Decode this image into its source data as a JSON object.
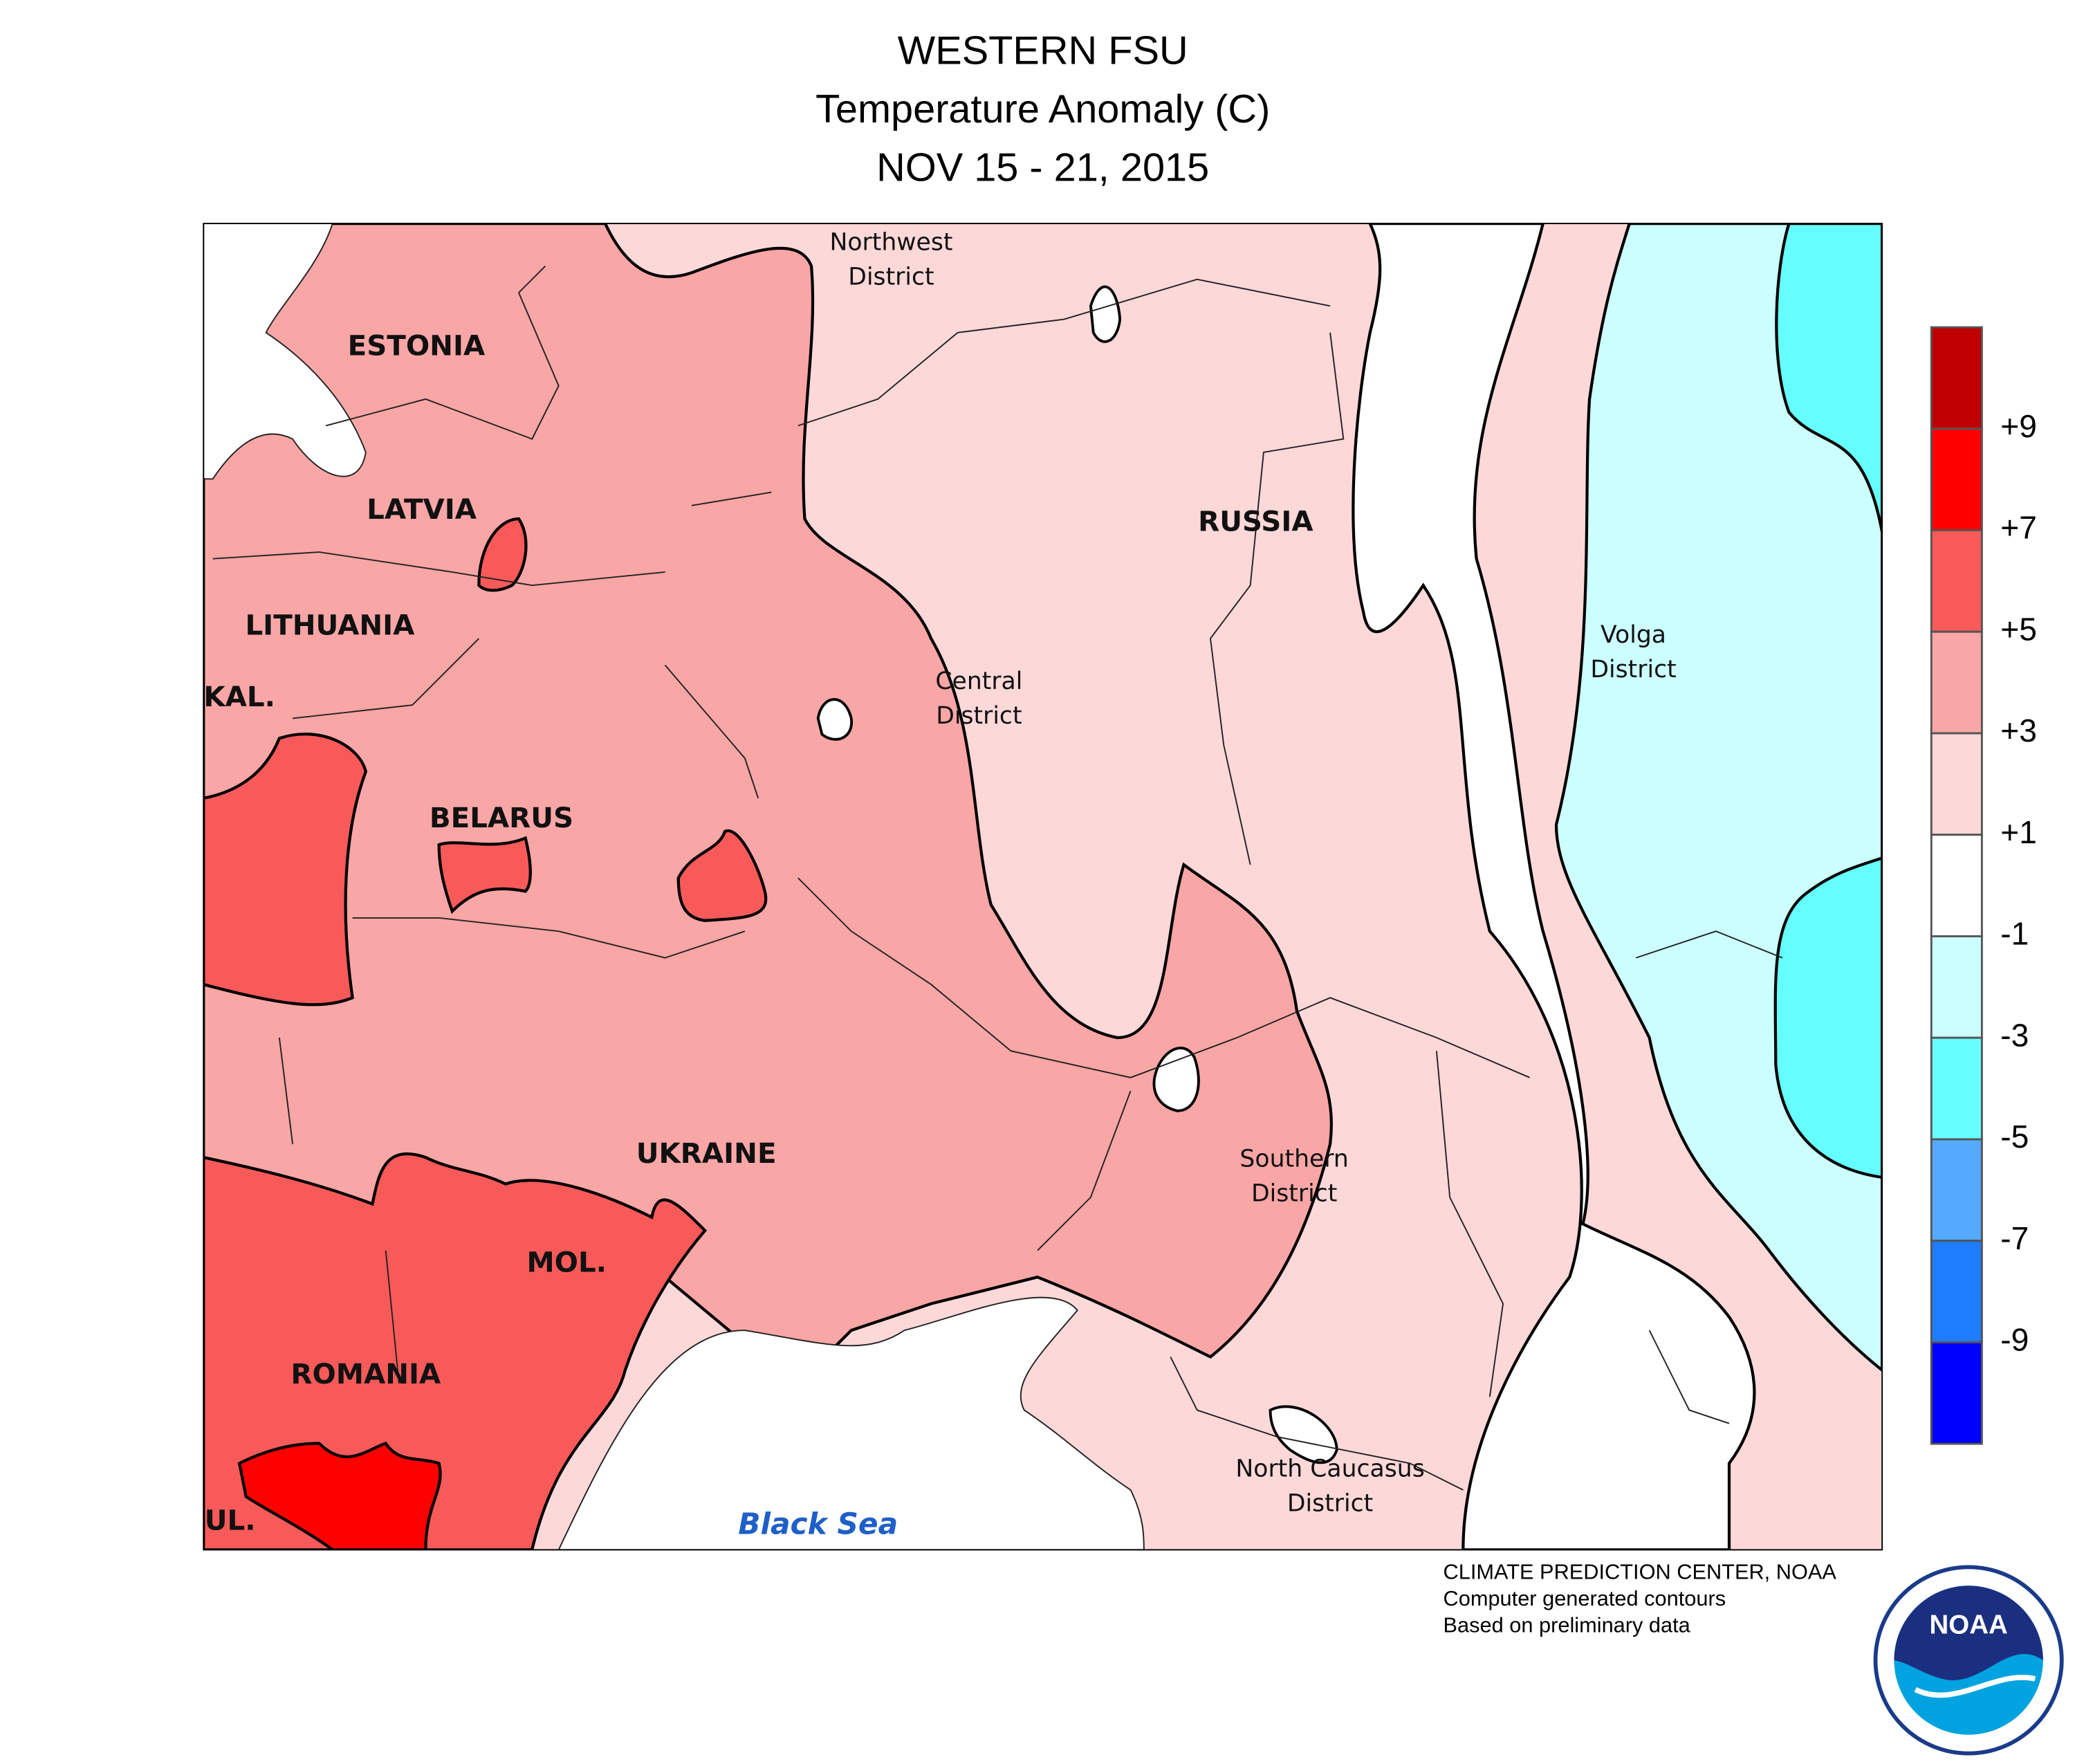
{
  "header": {
    "title": "WESTERN FSU",
    "subtitle": "Temperature Anomaly (C)",
    "period": "NOV 15 - 21, 2015"
  },
  "map": {
    "labels": [
      "ESTONIA",
      "LATVIA",
      "LITHUANIA",
      "KAL.",
      "BELARUS",
      "UKRAINE",
      "MOL.",
      "ROMANIA",
      "RUSSIA",
      "BUL."
    ],
    "districts": [
      [
        "Northwest",
        "District"
      ],
      [
        "Central",
        "District"
      ],
      [
        "Volga",
        "District"
      ],
      [
        "Southern",
        "District"
      ],
      [
        "North Caucasus",
        "District"
      ]
    ],
    "sea": "Black Sea"
  },
  "legend": {
    "colors": [
      "#c00000",
      "#ff0000",
      "#f85a5a",
      "#f9a6a6",
      "#fdd8d8",
      "#ffffff",
      "#ccffff",
      "#66ffff",
      "#55aaff",
      "#1e7cff",
      "#0000ff"
    ],
    "labels": [
      "+9",
      "+7",
      "+5",
      "+3",
      "+1",
      "-1",
      "-3",
      "-5",
      "-7",
      "-9"
    ]
  },
  "credits": [
    "CLIMATE PREDICTION CENTER, NOAA",
    "Computer generated contours",
    "Based on preliminary data"
  ],
  "logo": "NOAA"
}
